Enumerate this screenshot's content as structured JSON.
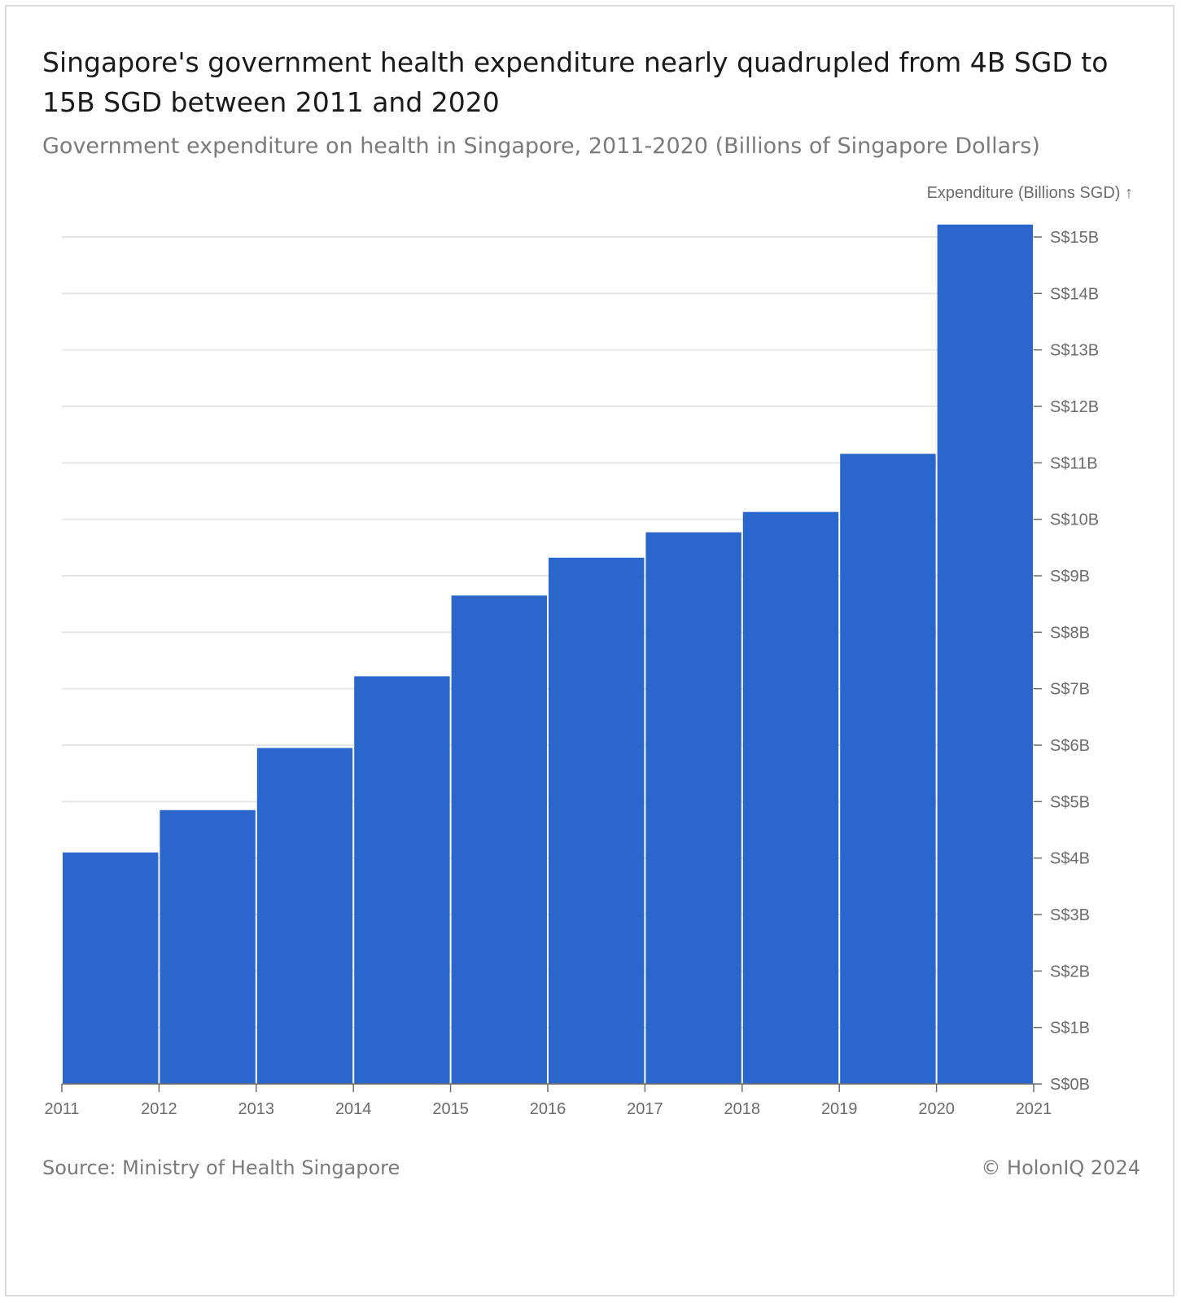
{
  "header": {
    "title": "Singapore's government health expenditure nearly quadrupled from 4B SGD to 15B SGD between 2011 and 2020",
    "subtitle": "Government expenditure on health in Singapore, 2011-2020 (Billions of Singapore Dollars)"
  },
  "footer": {
    "source": "Source: Ministry of Health Singapore",
    "copyright": "© HolonIQ 2024"
  },
  "colors": {
    "bar": "#2a66cc",
    "grid": "#e6e6e6",
    "axis": "#6b6b6b"
  },
  "chart_data": {
    "type": "bar",
    "title": "Singapore's government health expenditure nearly quadrupled from 4B SGD to 15B SGD between 2011 and 2020",
    "subtitle": "Government expenditure on health in Singapore, 2011-2020 (Billions of Singapore Dollars)",
    "ylabel": "Expenditure (Billions SGD) ↑",
    "xlabel": "",
    "y_axis_position": "right",
    "bins": [
      {
        "start": 2011,
        "end": 2012,
        "value": 4.1
      },
      {
        "start": 2012,
        "end": 2013,
        "value": 4.85
      },
      {
        "start": 2013,
        "end": 2014,
        "value": 5.95
      },
      {
        "start": 2014,
        "end": 2015,
        "value": 7.22
      },
      {
        "start": 2015,
        "end": 2016,
        "value": 8.65
      },
      {
        "start": 2016,
        "end": 2017,
        "value": 9.32
      },
      {
        "start": 2017,
        "end": 2018,
        "value": 9.77
      },
      {
        "start": 2018,
        "end": 2019,
        "value": 10.13
      },
      {
        "start": 2019,
        "end": 2020,
        "value": 11.16
      },
      {
        "start": 2020,
        "end": 2021,
        "value": 15.22
      }
    ],
    "xlim": [
      2011,
      2021
    ],
    "ylim": [
      0,
      15
    ],
    "x_ticks": [
      "2011",
      "2012",
      "2013",
      "2014",
      "2015",
      "2016",
      "2017",
      "2018",
      "2019",
      "2020",
      "2021"
    ],
    "y_ticks": [
      {
        "value": 0,
        "label": "S$0B"
      },
      {
        "value": 1,
        "label": "S$1B"
      },
      {
        "value": 2,
        "label": "S$2B"
      },
      {
        "value": 3,
        "label": "S$3B"
      },
      {
        "value": 4,
        "label": "S$4B"
      },
      {
        "value": 5,
        "label": "S$5B"
      },
      {
        "value": 6,
        "label": "S$6B"
      },
      {
        "value": 7,
        "label": "S$7B"
      },
      {
        "value": 8,
        "label": "S$8B"
      },
      {
        "value": 9,
        "label": "S$9B"
      },
      {
        "value": 10,
        "label": "S$10B"
      },
      {
        "value": 11,
        "label": "S$11B"
      },
      {
        "value": 12,
        "label": "S$12B"
      },
      {
        "value": 13,
        "label": "S$13B"
      },
      {
        "value": 14,
        "label": "S$14B"
      },
      {
        "value": 15,
        "label": "S$15B"
      }
    ],
    "grid": true
  }
}
